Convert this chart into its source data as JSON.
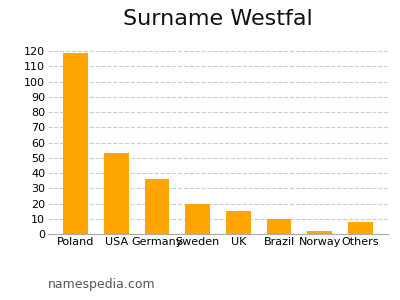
{
  "title": "Surname Westfal",
  "categories": [
    "Poland",
    "USA",
    "Germany",
    "Sweden",
    "UK",
    "Brazil",
    "Norway",
    "Others"
  ],
  "values": [
    119,
    53,
    36,
    20,
    15,
    10,
    2,
    8
  ],
  "bar_color": "#FFA500",
  "ylim": [
    0,
    130
  ],
  "yticks": [
    0,
    10,
    20,
    30,
    40,
    50,
    60,
    70,
    80,
    90,
    100,
    110,
    120
  ],
  "grid_color": "#cccccc",
  "grid_style": "--",
  "background_color": "#ffffff",
  "title_fontsize": 16,
  "tick_fontsize": 8,
  "watermark": "namespedia.com",
  "watermark_fontsize": 9,
  "watermark_color": "#555555"
}
